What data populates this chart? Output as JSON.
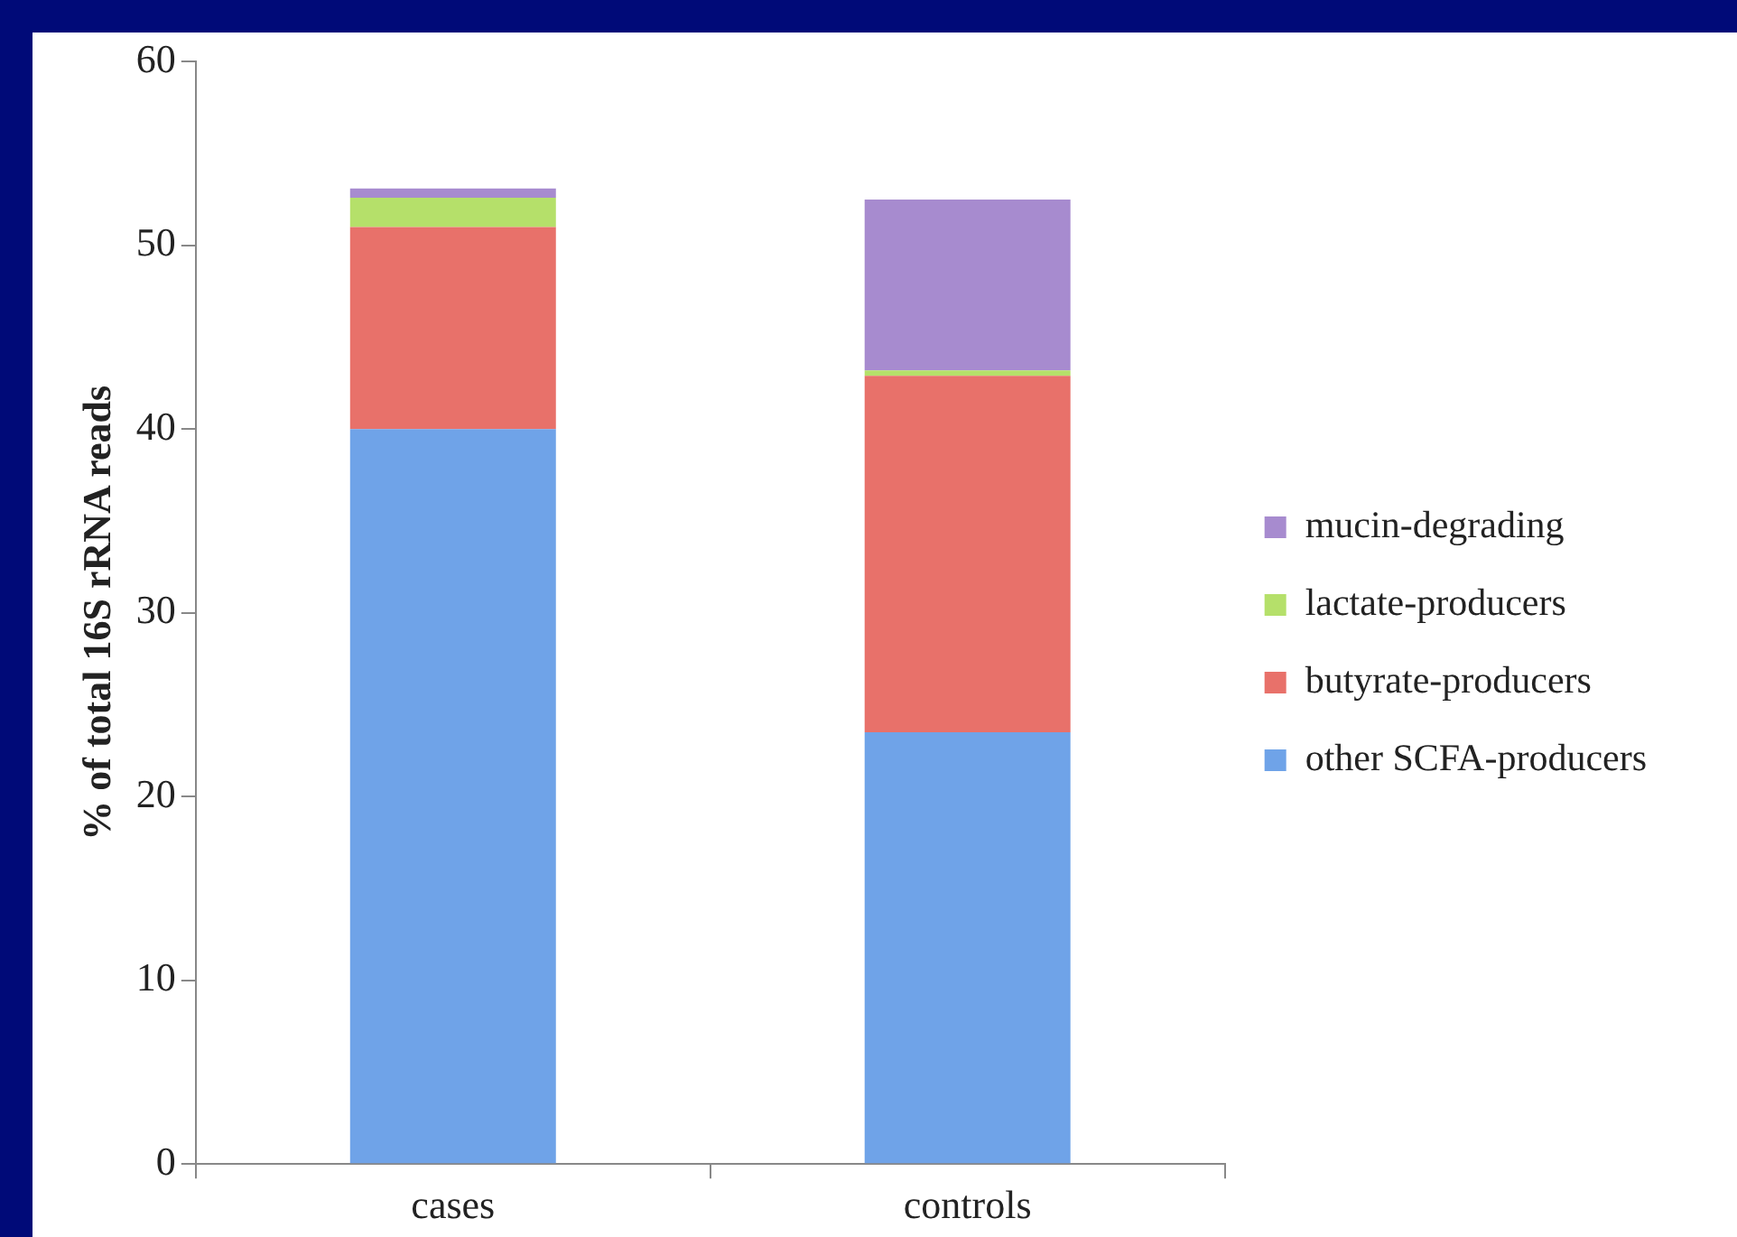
{
  "chart_data": {
    "type": "bar",
    "stacked": true,
    "ylabel": "% of total 16S rRNA reads",
    "categories": [
      "cases",
      "controls"
    ],
    "series": [
      {
        "name": "other SCFA-producers",
        "color": "#6fa3e8",
        "values": [
          40,
          23.5
        ]
      },
      {
        "name": "butyrate-producers",
        "color": "#e8716a",
        "values": [
          11,
          19.4
        ]
      },
      {
        "name": "lactate-producers",
        "color": "#b5e06a",
        "values": [
          1.6,
          0.3
        ]
      },
      {
        "name": "mucin-degrading",
        "color": "#a78bcf",
        "values": [
          0.5,
          9.3
        ]
      }
    ],
    "ylim": [
      0,
      60
    ],
    "yticks": [
      0,
      10,
      20,
      30,
      40,
      50,
      60
    ],
    "grid": false,
    "legend": "right"
  }
}
